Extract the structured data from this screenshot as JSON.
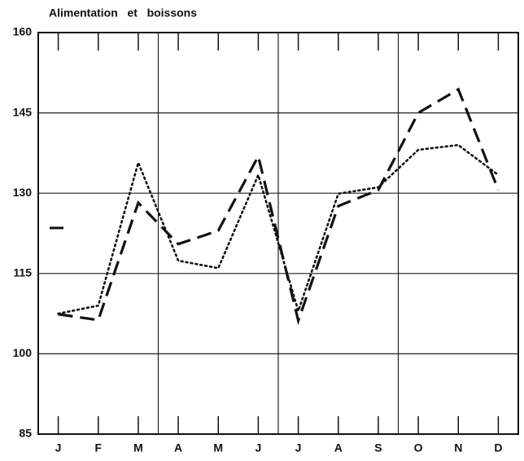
{
  "chart_data": {
    "type": "line",
    "title": "Alimentation   et   boissons",
    "categories": [
      "J",
      "F",
      "M",
      "A",
      "M",
      "J",
      "J",
      "A",
      "S",
      "O",
      "N",
      "D"
    ],
    "series": [
      {
        "color": "#111111",
        "dash": "dashed",
        "values": [
          107.4,
          106.3,
          128.2,
          120.5,
          123,
          136.9,
          106.2,
          127.6,
          130.6,
          145,
          149.4,
          130.6
        ]
      },
      {
        "color": "#111111",
        "dash": "dotted",
        "values": [
          107.5,
          109,
          135.7,
          117.4,
          116,
          133.4,
          108,
          129.9,
          131.1,
          138.1,
          139,
          133.4
        ]
      }
    ],
    "reference_mark": 123.5,
    "ylim": [
      85,
      160
    ],
    "yticks": [
      85,
      100,
      115,
      130,
      145,
      160
    ],
    "grid": true
  }
}
